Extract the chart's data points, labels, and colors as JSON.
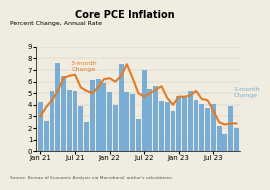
{
  "title": "Core PCE Inflation",
  "ylabel": "Percent Change, Annual Rate",
  "source": "Source: Bureau of Economic Analysis via Macrobond; author's calculations.",
  "ylim": [
    0,
    9
  ],
  "yticks": [
    0,
    1,
    2,
    3,
    4,
    5,
    6,
    7,
    8,
    9
  ],
  "bar_color": "#7aadd4",
  "line_color": "#e07b28",
  "label_3month": "3-month\nChange",
  "label_1month": "1-month\nChange",
  "bg_color": "#f0ece0",
  "bar_values": [
    4.2,
    2.6,
    5.2,
    7.6,
    6.5,
    5.3,
    5.2,
    3.9,
    2.5,
    6.1,
    6.2,
    5.9,
    5.1,
    4.0,
    7.5,
    5.1,
    4.9,
    2.8,
    7.0,
    5.4,
    5.6,
    4.3,
    4.2,
    3.5,
    4.8,
    4.7,
    5.2,
    4.4,
    4.1,
    3.7,
    4.1,
    2.2,
    1.5,
    3.9,
    2.0
  ],
  "line_values": [
    3.0,
    3.8,
    4.4,
    5.2,
    6.3,
    6.5,
    6.6,
    5.5,
    5.2,
    5.0,
    5.5,
    6.2,
    6.3,
    6.0,
    6.5,
    7.5,
    6.3,
    5.0,
    4.7,
    5.0,
    5.3,
    5.6,
    4.6,
    4.0,
    4.7,
    4.7,
    4.8,
    5.2,
    4.5,
    4.4,
    3.5,
    2.5,
    2.3,
    2.4,
    2.4
  ],
  "xtick_positions": [
    0,
    6,
    12,
    18,
    24,
    30
  ],
  "xtick_labels": [
    "Jan 21",
    "Jul 21",
    "Jan 22",
    "Jul 22",
    "Jan 23",
    "Jul 23"
  ]
}
